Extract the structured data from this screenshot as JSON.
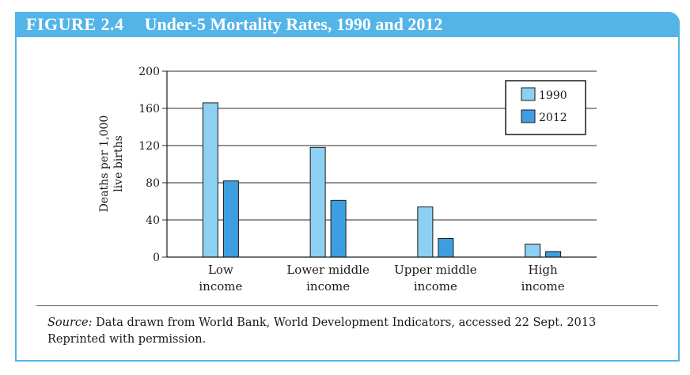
{
  "figure": {
    "label": "FIGURE 2.4",
    "title": "Under-5 Mortality Rates, 1990 and 2012"
  },
  "colors": {
    "header": "#54b4e8",
    "series_1990": "#8dd0f2",
    "series_2012": "#3d9fe0"
  },
  "chart_data": {
    "type": "bar",
    "title": "Under-5 Mortality Rates, 1990 and 2012",
    "categories": [
      [
        "Low",
        "income"
      ],
      [
        "Lower middle",
        "income"
      ],
      [
        "Upper middle",
        "income"
      ],
      [
        "High",
        "income"
      ]
    ],
    "series": [
      {
        "name": "1990",
        "values": [
          166,
          118,
          54,
          14
        ]
      },
      {
        "name": "2012",
        "values": [
          82,
          61,
          20,
          6
        ]
      }
    ],
    "ylabel": [
      "Deaths per 1,000",
      "live births"
    ],
    "xlabel": "",
    "ylim": [
      0,
      200
    ],
    "yticks": [
      0,
      40,
      80,
      120,
      160,
      200
    ],
    "grid": true,
    "legend": "top-right"
  },
  "source": {
    "label": "Source:",
    "text": " Data drawn from World Bank, World Development Indicators, accessed 22 Sept. 2013",
    "line2": "Reprinted with permission."
  }
}
